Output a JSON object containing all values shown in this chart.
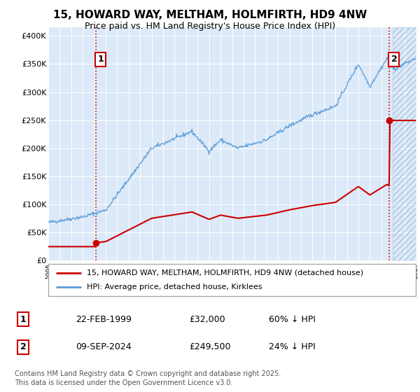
{
  "title": "15, HOWARD WAY, MELTHAM, HOLMFIRTH, HD9 4NW",
  "subtitle": "Price paid vs. HM Land Registry's House Price Index (HPI)",
  "yticks": [
    0,
    50000,
    100000,
    150000,
    200000,
    250000,
    300000,
    350000,
    400000
  ],
  "ytick_labels": [
    "£0",
    "£50K",
    "£100K",
    "£150K",
    "£200K",
    "£250K",
    "£300K",
    "£350K",
    "£400K"
  ],
  "xlim_start": 1995,
  "xlim_end": 2027,
  "ylim_min": 0,
  "ylim_max": 415000,
  "hpi_color": "#5b9bd5",
  "price_color": "#cc0000",
  "sale1_x": 1999.14,
  "sale1_y": 32000,
  "sale2_x": 2024.69,
  "sale2_y": 249500,
  "legend_line1": "15, HOWARD WAY, MELTHAM, HOLMFIRTH, HD9 4NW (detached house)",
  "legend_line2": "HPI: Average price, detached house, Kirklees",
  "annotation1_date": "22-FEB-1999",
  "annotation1_price": "£32,000",
  "annotation1_hpi": "60% ↓ HPI",
  "annotation2_date": "09-SEP-2024",
  "annotation2_price": "£249,500",
  "annotation2_hpi": "24% ↓ HPI",
  "footer": "Contains HM Land Registry data © Crown copyright and database right 2025.\nThis data is licensed under the Open Government Licence v3.0.",
  "background_color": "#dce9f8",
  "grid_color": "#ffffff",
  "hatch_start": 2025.0,
  "title_fontsize": 11,
  "subtitle_fontsize": 9,
  "tick_fontsize": 8
}
